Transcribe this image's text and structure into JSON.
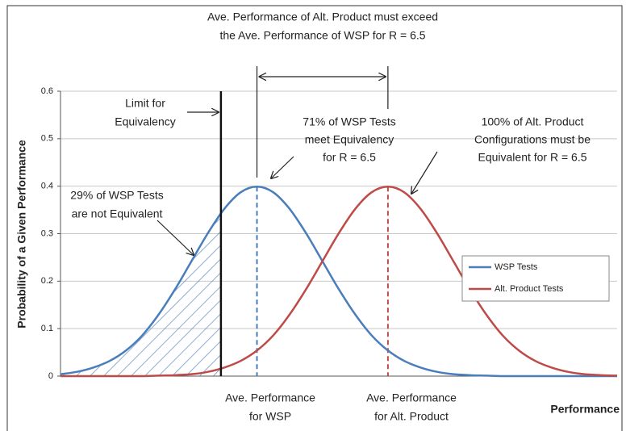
{
  "chart_data": {
    "type": "line",
    "annotations": {
      "top": [
        "Ave. Performance of Alt. Product must exceed",
        "the Ave. Performance of WSP for R = 6.5"
      ],
      "limit": [
        "Limit for",
        "Equivalency"
      ],
      "meet": [
        "71% of WSP Tests",
        "meet Equivalency",
        "for R = 6.5"
      ],
      "alt": [
        "100% of Alt. Product",
        "Configurations must be",
        "Equivalent for R = 6.5"
      ],
      "not_equivalent": [
        "29% of WSP Tests",
        "are not Equivalent"
      ],
      "wsp_mean": [
        "Ave. Performance",
        "for WSP"
      ],
      "alt_mean": [
        "Ave. Performance",
        "for Alt. Product"
      ]
    },
    "x_label": "Performance",
    "y_label": "Probability of a Given Performance",
    "x": [
      -3,
      -2.75,
      -2.5,
      -2.25,
      -2,
      -1.75,
      -1.5,
      -1.25,
      -1,
      -0.75,
      -0.5,
      -0.25,
      0,
      0.25,
      0.5,
      0.75,
      1,
      1.25,
      1.5,
      1.75,
      2,
      2.25,
      2.5,
      2.75,
      3,
      3.25,
      3.5,
      3.75,
      4,
      4.25,
      4.5,
      4.75,
      5,
      5.25,
      5.5
    ],
    "series": [
      {
        "name": "WSP Tests",
        "color": "#4a7ebb",
        "values": [
          0.004,
          0.009,
          0.018,
          0.032,
          0.054,
          0.086,
          0.13,
          0.183,
          0.242,
          0.301,
          0.352,
          0.387,
          0.399,
          0.387,
          0.352,
          0.301,
          0.242,
          0.183,
          0.13,
          0.086,
          0.054,
          0.032,
          0.018,
          0.009,
          0.004,
          0.002,
          0.001,
          0,
          0,
          0,
          0,
          0,
          0,
          0,
          0
        ]
      },
      {
        "name": "Alt. Product Tests",
        "color": "#be4b48",
        "values": [
          0,
          0,
          0,
          0,
          0,
          0,
          0.001,
          0.002,
          0.004,
          0.009,
          0.018,
          0.032,
          0.054,
          0.086,
          0.13,
          0.183,
          0.242,
          0.301,
          0.352,
          0.387,
          0.399,
          0.387,
          0.352,
          0.301,
          0.242,
          0.183,
          0.13,
          0.086,
          0.054,
          0.032,
          0.018,
          0.009,
          0.004,
          0.002,
          0.001
        ]
      }
    ],
    "means": [
      0,
      2
    ],
    "equivalency_limit": -0.55,
    "xlim": [
      -3,
      5.5
    ],
    "ylim": [
      0,
      0.6
    ],
    "yticks": [
      0,
      0.1,
      0.2,
      0.3,
      0.4,
      0.5,
      0.6
    ],
    "grid": true,
    "legend": "right"
  }
}
